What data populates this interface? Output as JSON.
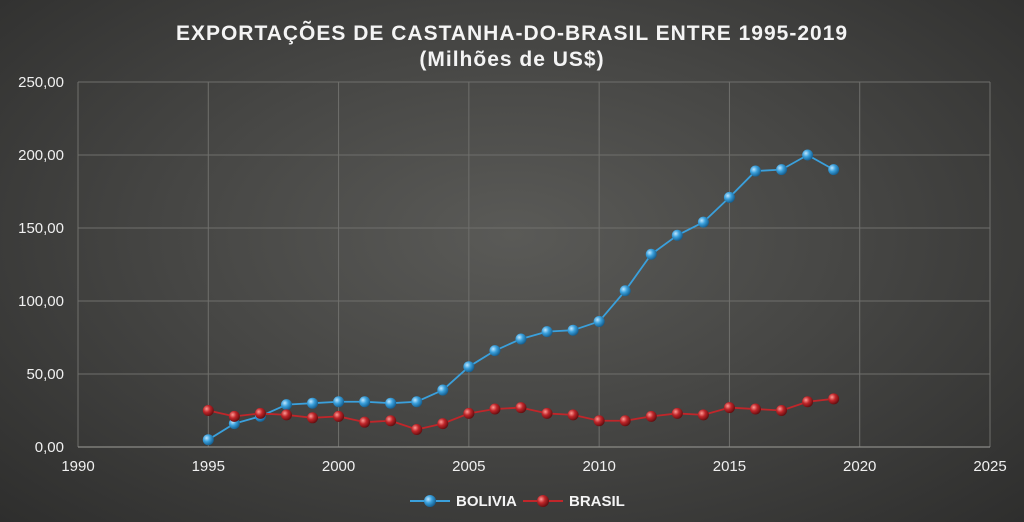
{
  "chart_data": {
    "type": "line",
    "title": "EXPORTAÇÕES DE CASTANHA-DO-BRASIL ENTRE 1995-2019",
    "subtitle": "(Milhões de US$)",
    "xlabel": "",
    "ylabel": "",
    "xlim": [
      1990,
      2025
    ],
    "ylim": [
      0,
      250
    ],
    "x_ticks": [
      "1990",
      "1995",
      "2000",
      "2005",
      "2010",
      "2015",
      "2020",
      "2025"
    ],
    "y_ticks": [
      "0,00",
      "50,00",
      "100,00",
      "150,00",
      "200,00",
      "250,00"
    ],
    "grid": true,
    "legend_position": "bottom",
    "x": [
      1995,
      1996,
      1997,
      1998,
      1999,
      2000,
      2001,
      2002,
      2003,
      2004,
      2005,
      2006,
      2007,
      2008,
      2009,
      2010,
      2011,
      2012,
      2013,
      2014,
      2015,
      2016,
      2017,
      2018,
      2019
    ],
    "series": [
      {
        "name": "BOLIVIA",
        "color": "#3aa0dc",
        "values": [
          5,
          16,
          21,
          29,
          30,
          31,
          31,
          30,
          31,
          39,
          55,
          66,
          74,
          79,
          80,
          86,
          107,
          132,
          145,
          154,
          171,
          189,
          190,
          200,
          190
        ]
      },
      {
        "name": "BRASIL",
        "color": "#c0262a",
        "values": [
          25,
          21,
          23,
          22,
          20,
          21,
          17,
          18,
          12,
          16,
          23,
          26,
          27,
          23,
          22,
          18,
          18,
          21,
          23,
          22,
          27,
          26,
          25,
          31,
          33
        ]
      }
    ]
  }
}
